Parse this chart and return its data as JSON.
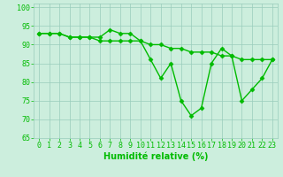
{
  "x": [
    0,
    1,
    2,
    3,
    4,
    5,
    6,
    7,
    8,
    9,
    10,
    11,
    12,
    13,
    14,
    15,
    16,
    17,
    18,
    19,
    20,
    21,
    22,
    23
  ],
  "line1": [
    93,
    93,
    93,
    92,
    92,
    92,
    92,
    94,
    93,
    93,
    91,
    86,
    81,
    85,
    75,
    71,
    73,
    85,
    89,
    87,
    75,
    78,
    81,
    86
  ],
  "line2": [
    93,
    93,
    93,
    92,
    92,
    92,
    91,
    91,
    91,
    91,
    91,
    90,
    90,
    89,
    89,
    88,
    88,
    88,
    87,
    87,
    86,
    86,
    86,
    86
  ],
  "line_color": "#00BB00",
  "bg_color": "#CCEEDD",
  "grid_color": "#99CCBB",
  "xlabel": "Humidité relative (%)",
  "xlim": [
    -0.5,
    23.5
  ],
  "ylim": [
    65,
    101
  ],
  "yticks": [
    65,
    70,
    75,
    80,
    85,
    90,
    95,
    100
  ],
  "xticks": [
    0,
    1,
    2,
    3,
    4,
    5,
    6,
    7,
    8,
    9,
    10,
    11,
    12,
    13,
    14,
    15,
    16,
    17,
    18,
    19,
    20,
    21,
    22,
    23
  ],
  "marker": "D",
  "marker_size": 2.5,
  "line_width": 1.0,
  "xlabel_fontsize": 7,
  "tick_fontsize": 6
}
